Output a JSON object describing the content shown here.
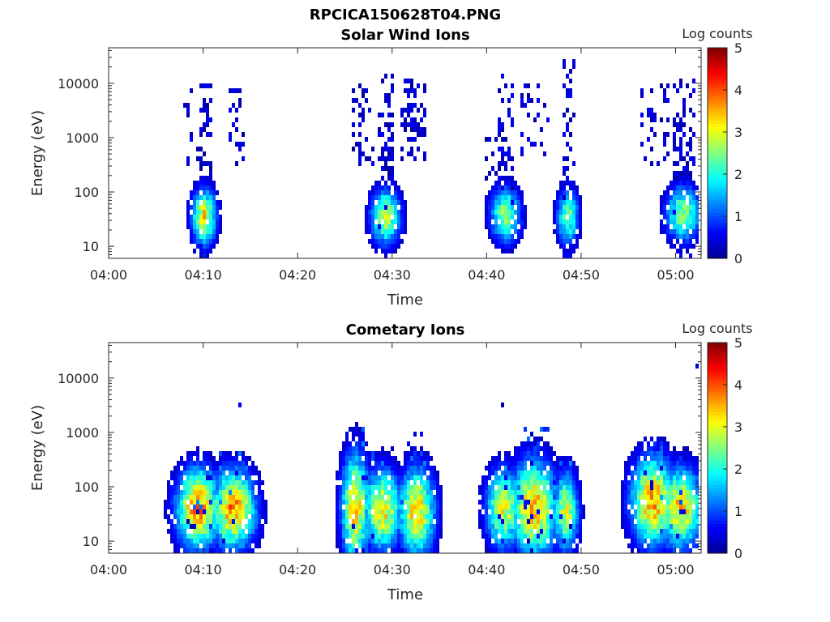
{
  "figure_title": "RPCICA150628T04.PNG",
  "colors": {
    "colormap": [
      "#00008f",
      "#0000ff",
      "#0080ff",
      "#00ffff",
      "#80ff80",
      "#ffff00",
      "#ff8000",
      "#ff0000",
      "#800000"
    ],
    "axes": "#262626",
    "background": "#ffffff"
  },
  "chart_data": [
    {
      "type": "heatmap",
      "title": "Solar Wind Ions",
      "xlabel": "Time",
      "ylabel": "Energy (eV)",
      "x_ticks": [
        "04:00",
        "04:10",
        "04:20",
        "04:30",
        "04:40",
        "04:50",
        "05:00"
      ],
      "x_tick_minutes": [
        0,
        10,
        20,
        30,
        40,
        50,
        60
      ],
      "xlim_minutes": [
        0,
        62.7
      ],
      "y_scale": "log",
      "y_ticks": [
        "10",
        "100",
        "1000",
        "10000"
      ],
      "y_tick_values": [
        10,
        100,
        1000,
        10000
      ],
      "ylim": [
        6,
        45000
      ],
      "colorbar": {
        "label": "Log counts",
        "ticks": [
          "0",
          "1",
          "2",
          "3",
          "4",
          "5"
        ],
        "range": [
          0,
          5
        ]
      },
      "blobs": [
        {
          "t": 10.1,
          "e": 35,
          "half_width_min": 0.9,
          "spread_decades": 0.35,
          "peak": 3.4,
          "hi_energy_to": 12000,
          "hi_density": 0.55
        },
        {
          "t": 29.3,
          "e": 35,
          "half_width_min": 1.1,
          "spread_decades": 0.35,
          "peak": 3.0,
          "hi_energy_to": 18000,
          "hi_density": 0.6
        },
        {
          "t": 42.0,
          "e": 38,
          "half_width_min": 1.1,
          "spread_decades": 0.35,
          "peak": 2.8,
          "hi_energy_to": 14000,
          "hi_density": 0.6
        },
        {
          "t": 48.6,
          "e": 35,
          "half_width_min": 0.8,
          "spread_decades": 0.35,
          "peak": 2.6,
          "hi_energy_to": 28000,
          "hi_density": 0.55
        },
        {
          "t": 60.8,
          "e": 40,
          "half_width_min": 1.3,
          "spread_decades": 0.35,
          "peak": 2.7,
          "hi_energy_to": 12000,
          "hi_density": 0.5
        }
      ],
      "sparse_regions": [
        {
          "t0": 12.8,
          "t1": 14.3,
          "e0": 300,
          "e1": 9000,
          "density": 0.35
        },
        {
          "t0": 25.8,
          "t1": 28.0,
          "e0": 300,
          "e1": 10000,
          "density": 0.2
        },
        {
          "t0": 31.0,
          "t1": 33.6,
          "e0": 400,
          "e1": 12000,
          "density": 0.35
        },
        {
          "t0": 39.9,
          "t1": 41.2,
          "e0": 60,
          "e1": 1500,
          "density": 0.2
        },
        {
          "t0": 43.5,
          "t1": 46.8,
          "e0": 500,
          "e1": 10000,
          "density": 0.2
        },
        {
          "t0": 56.2,
          "t1": 59.5,
          "e0": 300,
          "e1": 9000,
          "density": 0.2
        },
        {
          "t0": 7.8,
          "t1": 8.8,
          "e0": 60,
          "e1": 9000,
          "density": 0.15
        }
      ]
    },
    {
      "type": "heatmap",
      "title": "Cometary Ions",
      "xlabel": "Time",
      "ylabel": "Energy (eV)",
      "x_ticks": [
        "04:00",
        "04:10",
        "04:20",
        "04:30",
        "04:40",
        "04:50",
        "05:00"
      ],
      "x_tick_minutes": [
        0,
        10,
        20,
        30,
        40,
        50,
        60
      ],
      "xlim_minutes": [
        0,
        62.7
      ],
      "y_scale": "log",
      "y_ticks": [
        "10",
        "100",
        "1000",
        "10000"
      ],
      "y_tick_values": [
        10,
        100,
        1000,
        10000
      ],
      "ylim": [
        6,
        45000
      ],
      "colorbar": {
        "label": "Log counts",
        "ticks": [
          "0",
          "1",
          "2",
          "3",
          "4",
          "5"
        ],
        "range": [
          0,
          5
        ]
      },
      "blobs": [
        {
          "t": 9.5,
          "e": 40,
          "half_width_min": 1.6,
          "spread_decades": 0.5,
          "peak": 4.0,
          "hi_energy_to": 250,
          "hi_density": 0.5
        },
        {
          "t": 13.2,
          "e": 38,
          "half_width_min": 1.6,
          "spread_decades": 0.5,
          "peak": 3.9,
          "hi_energy_to": 500,
          "hi_density": 0.4
        },
        {
          "t": 26.1,
          "e": 40,
          "half_width_min": 1.0,
          "spread_decades": 0.7,
          "peak": 3.6,
          "hi_energy_to": 1500,
          "hi_density": 0.4
        },
        {
          "t": 29.0,
          "e": 38,
          "half_width_min": 1.4,
          "spread_decades": 0.5,
          "peak": 3.5,
          "hi_energy_to": 600,
          "hi_density": 0.4
        },
        {
          "t": 32.6,
          "e": 35,
          "half_width_min": 1.3,
          "spread_decades": 0.55,
          "peak": 3.6,
          "hi_energy_to": 1200,
          "hi_density": 0.4
        },
        {
          "t": 41.8,
          "e": 40,
          "half_width_min": 1.3,
          "spread_decades": 0.5,
          "peak": 3.2,
          "hi_energy_to": 400,
          "hi_density": 0.35
        },
        {
          "t": 45.0,
          "e": 40,
          "half_width_min": 1.7,
          "spread_decades": 0.6,
          "peak": 3.8,
          "hi_energy_to": 1500,
          "hi_density": 0.45
        },
        {
          "t": 48.4,
          "e": 35,
          "half_width_min": 0.9,
          "spread_decades": 0.5,
          "peak": 3.1,
          "hi_energy_to": 300,
          "hi_density": 0.35
        },
        {
          "t": 57.6,
          "e": 55,
          "half_width_min": 1.6,
          "spread_decades": 0.55,
          "peak": 3.9,
          "hi_energy_to": 800,
          "hi_density": 0.4
        },
        {
          "t": 60.5,
          "e": 40,
          "half_width_min": 1.6,
          "spread_decades": 0.5,
          "peak": 3.6,
          "hi_energy_to": 600,
          "hi_density": 0.4
        }
      ],
      "sparse_regions": [
        {
          "t0": 13.6,
          "t1": 14.0,
          "e0": 2800,
          "e1": 3600,
          "density": 0.8
        },
        {
          "t0": 41.4,
          "t1": 41.8,
          "e0": 2800,
          "e1": 3600,
          "density": 0.8
        },
        {
          "t0": 43.8,
          "t1": 44.2,
          "e0": 6000,
          "e1": 7000,
          "density": 0.8
        },
        {
          "t0": 61.5,
          "t1": 61.9,
          "e0": 4800,
          "e1": 5800,
          "density": 0.8
        },
        {
          "t0": 62.0,
          "t1": 62.4,
          "e0": 15000,
          "e1": 18000,
          "density": 0.8
        }
      ]
    }
  ]
}
